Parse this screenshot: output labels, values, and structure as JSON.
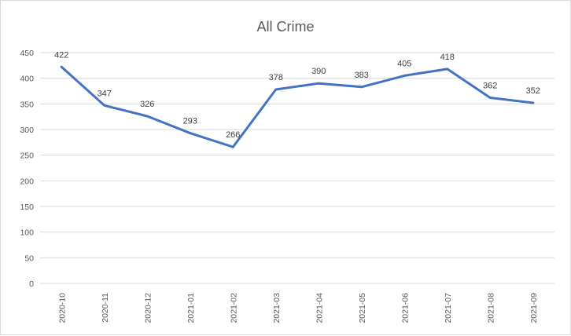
{
  "chart_data": {
    "type": "line",
    "title": "All Crime",
    "xlabel": "",
    "ylabel": "",
    "categories": [
      "2020-10",
      "2020-11",
      "2020-12",
      "2021-01",
      "2021-02",
      "2021-03",
      "2021-04",
      "2021-05",
      "2021-06",
      "2021-07",
      "2021-08",
      "2021-09"
    ],
    "series": [
      {
        "values": [
          422,
          347,
          326,
          293,
          266,
          378,
          390,
          383,
          405,
          418,
          362,
          352
        ]
      }
    ],
    "ylim": [
      0,
      450
    ],
    "yticks": [
      0,
      50,
      100,
      150,
      200,
      250,
      300,
      350,
      400,
      450
    ],
    "grid": true,
    "legend": "none",
    "colors": {
      "line": "#4472c4",
      "grid": "#d9d9d9",
      "text": "#595959"
    }
  }
}
